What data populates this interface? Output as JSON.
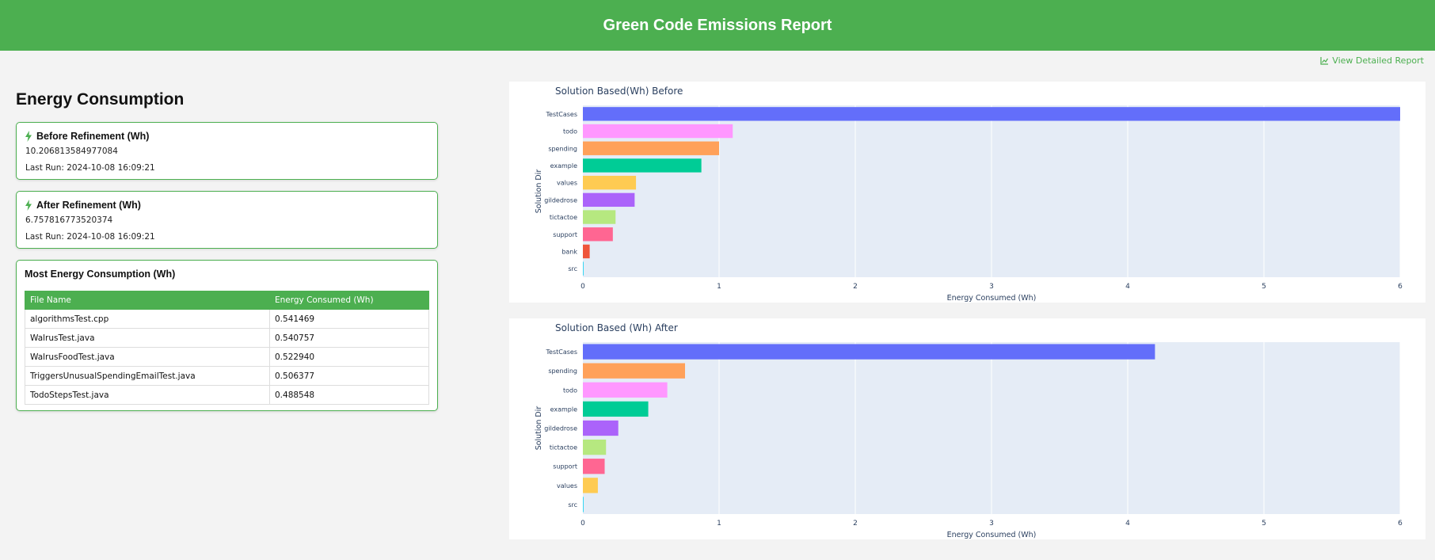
{
  "header": {
    "title": "Green Code Emissions Report"
  },
  "links": {
    "detailed_report": "View Detailed Report"
  },
  "energy": {
    "section_title": "Energy Consumption",
    "before": {
      "title": "Before Refinement (Wh)",
      "value": "10.206813584977084",
      "last_run": "Last Run: 2024-10-08 16:09:21"
    },
    "after": {
      "title": "After Refinement (Wh)",
      "value": "6.757816773520374",
      "last_run": "Last Run: 2024-10-08 16:09:21"
    }
  },
  "most_energy": {
    "title": "Most Energy Consumption (Wh)",
    "columns": [
      "File Name",
      "Energy Consumed (Wh)"
    ],
    "rows": [
      [
        "algorithmsTest.cpp",
        "0.541469"
      ],
      [
        "WalrusTest.java",
        "0.540757"
      ],
      [
        "WalrusFoodTest.java",
        "0.522940"
      ],
      [
        "TriggersUnusualSpendingEmailTest.java",
        "0.506377"
      ],
      [
        "TodoStepsTest.java",
        "0.488548"
      ]
    ]
  },
  "colors": {
    "accent": "#4caf50",
    "plot_bg": "#e5ecf6"
  },
  "chart_data": [
    {
      "type": "bar",
      "orientation": "horizontal",
      "title": "Solution Based(Wh) Before",
      "xlabel": "Energy Consumed (Wh)",
      "ylabel": "Solution Dir",
      "xlim": [
        0,
        6
      ],
      "xticks": [
        0,
        1,
        2,
        3,
        4,
        5,
        6
      ],
      "grid": true,
      "categories": [
        "src",
        "bank",
        "support",
        "tictactoe",
        "gildedrose",
        "values",
        "example",
        "spending",
        "todo",
        "TestCases"
      ],
      "values": [
        0.005,
        0.05,
        0.22,
        0.24,
        0.38,
        0.39,
        0.87,
        1.0,
        1.1,
        6.0
      ],
      "bar_colors": [
        "#19d3f3",
        "#ef553b",
        "#ff6692",
        "#b6e880",
        "#ab63fa",
        "#fecb52",
        "#00cc96",
        "#ffa15a",
        "#ff97ff",
        "#636efa"
      ]
    },
    {
      "type": "bar",
      "orientation": "horizontal",
      "title": "Solution Based (Wh) After",
      "xlabel": "Energy Consumed (Wh)",
      "ylabel": "Solution Dir",
      "xlim": [
        0,
        6
      ],
      "xticks": [
        0,
        1,
        2,
        3,
        4,
        5,
        6
      ],
      "grid": true,
      "categories": [
        "src",
        "values",
        "support",
        "tictactoe",
        "gildedrose",
        "example",
        "todo",
        "spending",
        "TestCases"
      ],
      "values": [
        0.005,
        0.11,
        0.16,
        0.17,
        0.26,
        0.48,
        0.62,
        0.75,
        4.2
      ],
      "bar_colors": [
        "#19d3f3",
        "#fecb52",
        "#ff6692",
        "#b6e880",
        "#ab63fa",
        "#00cc96",
        "#ff97ff",
        "#ffa15a",
        "#636efa"
      ]
    }
  ]
}
